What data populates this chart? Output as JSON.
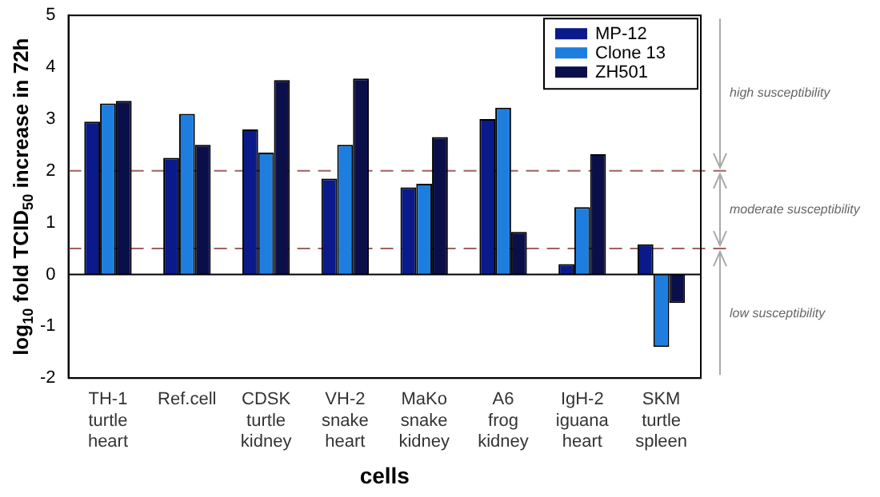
{
  "chart_data": {
    "type": "bar",
    "xlabel": "cells",
    "ylabel": "log$_{10}$ fold TCID$_{50}$ increase in 72h",
    "categories": [
      "TH-1\nturtle\nheart",
      "Ref.cell",
      "CDSK\nturtle\nkidney",
      "VH-2\nsnake\nheart",
      "MaKo\nsnake\nkidney",
      "A6\nfrog\nkidney",
      "IgH-2\niguana\nheart",
      "SKM\nturtle\nspleen"
    ],
    "series": [
      {
        "name": "MP-12",
        "color": "#0a1a8a",
        "values": [
          2.95,
          2.25,
          2.8,
          1.85,
          1.68,
          3.0,
          0.2,
          0.58
        ]
      },
      {
        "name": "Clone 13",
        "color": "#1e7ee0",
        "values": [
          3.3,
          3.1,
          2.35,
          2.5,
          1.75,
          3.22,
          1.3,
          -1.4
        ]
      },
      {
        "name": "ZH501",
        "color": "#0a0f4a",
        "values": [
          3.35,
          2.5,
          3.75,
          3.78,
          2.65,
          0.82,
          2.32,
          -0.55
        ]
      }
    ],
    "ylim": [
      -2,
      5
    ],
    "yticks": [
      -2,
      -1,
      0,
      1,
      2,
      3,
      4,
      5
    ],
    "grid": false,
    "legend": "top right",
    "ref_lines": [
      {
        "axis": "y",
        "value": 2,
        "color": "#a06060",
        "line_style": "dashed"
      },
      {
        "axis": "y",
        "value": 0.5,
        "color": "#a06060",
        "line_style": "dashed"
      }
    ],
    "annotations": [
      "high susceptibility",
      "moderate susceptibility",
      "low susceptibility"
    ]
  }
}
